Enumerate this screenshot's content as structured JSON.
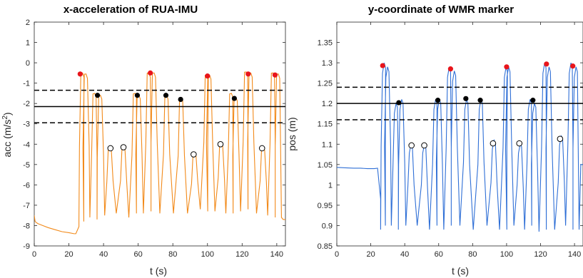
{
  "colors": {
    "acc_line": "#f28a1a",
    "pos_line": "#2f6fd6",
    "red_marker": "#e8151b",
    "black_marker": "#000000",
    "hollow_marker_fill": "#ffffff",
    "threshold": "#000000"
  },
  "chart_data": [
    {
      "type": "line",
      "title": "x-acceleration of RUA-IMU",
      "xlabel": "t (s)",
      "ylabel_main": "acc (m/s",
      "ylabel_sup": "2",
      "ylabel_tail": ")",
      "xlim": [
        0,
        145
      ],
      "ylim": [
        -9,
        2
      ],
      "xticks": [
        0,
        20,
        40,
        60,
        80,
        100,
        120,
        140
      ],
      "yticks": [
        -9,
        -8,
        -7,
        -6,
        -5,
        -4,
        -3,
        -2,
        -1,
        0,
        1,
        2
      ],
      "grid": false,
      "baseline": [
        [
          0,
          -7.5
        ],
        [
          0.5,
          -7.8
        ],
        [
          2,
          -7.9
        ],
        [
          5,
          -8.0
        ],
        [
          8,
          -8.1
        ],
        [
          12,
          -8.2
        ],
        [
          16,
          -8.3
        ],
        [
          20,
          -8.35
        ],
        [
          23,
          -8.4
        ],
        [
          24,
          -8.4
        ]
      ],
      "peak_times": [
        27.5,
        29.5,
        34.5,
        37.8,
        43.3,
        51.2,
        57.8,
        60,
        65.8,
        68.8,
        76,
        84.5,
        92.2,
        99.3,
        100.8,
        107.6,
        113.4,
        116,
        122,
        124.6,
        131.8,
        137.5,
        140.5
      ],
      "peak_values": [
        -0.5,
        -0.55,
        -1.5,
        -1.6,
        -4.2,
        -4.2,
        -1.5,
        -1.6,
        -0.5,
        -0.5,
        -1.6,
        -1.7,
        -4.5,
        -0.6,
        -0.6,
        -4.0,
        -1.5,
        -1.7,
        -0.45,
        -0.5,
        -4.2,
        -0.5,
        -0.55
      ],
      "trough_values": [
        -7.7,
        -7.8,
        -7.6,
        -7.7,
        -7.5,
        -7.4,
        -7.6,
        -7.4,
        -7.4,
        -7.3,
        -7.4,
        -7.4,
        -7.4,
        -7.2,
        -7.3,
        -7.3,
        -7.4,
        -7.4,
        -7.3,
        -7.2,
        -7.4,
        -7.5,
        -7.6
      ],
      "end_level": -7.7,
      "thresholds": [
        {
          "y": -1.35,
          "style": "dashed"
        },
        {
          "y": -2.15,
          "style": "solid"
        },
        {
          "y": -2.95,
          "style": "dashed"
        }
      ],
      "red_markers": [
        {
          "x": 26.5,
          "y": -0.55
        },
        {
          "x": 67,
          "y": -0.5
        },
        {
          "x": 100,
          "y": -0.65
        },
        {
          "x": 123.5,
          "y": -0.55
        },
        {
          "x": 139,
          "y": -0.6
        }
      ],
      "black_markers": [
        {
          "x": 36.5,
          "y": -1.6
        },
        {
          "x": 59.5,
          "y": -1.6
        },
        {
          "x": 76,
          "y": -1.6
        },
        {
          "x": 84.5,
          "y": -1.8
        },
        {
          "x": 115.5,
          "y": -1.75
        }
      ],
      "hollow_markers": [
        {
          "x": 44,
          "y": -4.2
        },
        {
          "x": 51.5,
          "y": -4.15
        },
        {
          "x": 92,
          "y": -4.5
        },
        {
          "x": 107.5,
          "y": -4.0
        },
        {
          "x": 131.5,
          "y": -4.2
        }
      ]
    },
    {
      "type": "line",
      "title": "y-coordinate of WMR marker",
      "xlabel": "t (s)",
      "ylabel": "pos (m)",
      "xlim": [
        0,
        145
      ],
      "ylim": [
        0.85,
        1.4
      ],
      "xticks": [
        0,
        20,
        40,
        60,
        80,
        100,
        120,
        140
      ],
      "yticks": [
        0.85,
        0.9,
        0.95,
        1,
        1.05,
        1.1,
        1.15,
        1.2,
        1.25,
        1.3,
        1.35
      ],
      "ytick_labels": [
        "0.85",
        "0.9",
        "0.95",
        "1",
        "1.05",
        "1.1",
        "1.15",
        "1.2",
        "1.25",
        "1.3",
        "1.35"
      ],
      "grid": false,
      "baseline": [
        [
          0,
          1.043
        ],
        [
          5,
          1.042
        ],
        [
          10,
          1.041
        ],
        [
          14,
          1.041
        ],
        [
          18,
          1.04
        ],
        [
          22,
          1.04
        ],
        [
          24,
          1.041
        ]
      ],
      "peak_times": [
        27.5,
        29.5,
        34.5,
        37.8,
        43.3,
        51.2,
        57.8,
        60,
        65.8,
        68.8,
        76,
        84.5,
        92.2,
        99.3,
        100.8,
        107.6,
        113.4,
        116,
        122,
        124.6,
        131.8,
        137.5,
        140.5
      ],
      "peak_values": [
        1.3,
        1.29,
        1.2,
        1.21,
        1.1,
        1.1,
        1.21,
        1.21,
        1.29,
        1.28,
        1.21,
        1.21,
        1.11,
        1.29,
        1.29,
        1.1,
        1.21,
        1.2,
        1.3,
        1.29,
        1.12,
        1.3,
        1.29
      ],
      "trough_values": [
        0.89,
        0.9,
        0.9,
        0.89,
        0.9,
        0.9,
        0.89,
        0.9,
        0.89,
        0.9,
        0.9,
        0.89,
        0.9,
        0.89,
        0.89,
        0.9,
        0.89,
        0.9,
        0.885,
        0.89,
        0.89,
        0.9,
        0.89
      ],
      "end_level": 1.05,
      "thresholds": [
        {
          "y": 1.24,
          "style": "dashed"
        },
        {
          "y": 1.2,
          "style": "solid"
        },
        {
          "y": 1.16,
          "style": "dashed"
        }
      ],
      "red_markers": [
        {
          "x": 27,
          "y": 1.293
        },
        {
          "x": 67,
          "y": 1.285
        },
        {
          "x": 100,
          "y": 1.29
        },
        {
          "x": 123.5,
          "y": 1.297
        },
        {
          "x": 139,
          "y": 1.292
        }
      ],
      "black_markers": [
        {
          "x": 36.5,
          "y": 1.202
        },
        {
          "x": 59.5,
          "y": 1.208
        },
        {
          "x": 76,
          "y": 1.212
        },
        {
          "x": 84.5,
          "y": 1.208
        },
        {
          "x": 115.5,
          "y": 1.208
        }
      ],
      "hollow_markers": [
        {
          "x": 44,
          "y": 1.097
        },
        {
          "x": 51.5,
          "y": 1.097
        },
        {
          "x": 92,
          "y": 1.102
        },
        {
          "x": 107.5,
          "y": 1.102
        },
        {
          "x": 131.5,
          "y": 1.113
        }
      ]
    }
  ]
}
